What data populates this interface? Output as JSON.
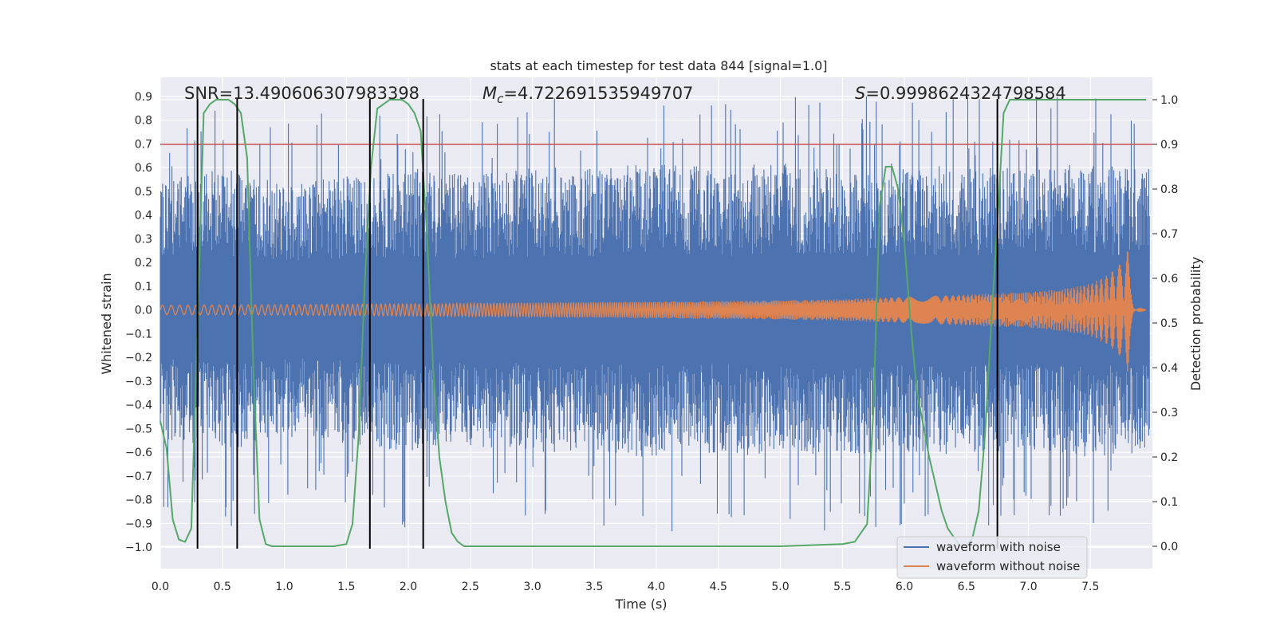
{
  "chart_data": {
    "type": "line",
    "title": "stats at each timestep for test data 844 [signal=1.0]",
    "xlabel": "Time (s)",
    "ylabel": "Whitened strain",
    "y2label": "Detection probability",
    "xlim": [
      0.0,
      8.0
    ],
    "ylim": [
      -1.09,
      0.98
    ],
    "y2lim": [
      -0.05,
      1.05
    ],
    "x_ticks": [
      0.0,
      0.5,
      1.0,
      1.5,
      2.0,
      2.5,
      3.0,
      3.5,
      4.0,
      4.5,
      5.0,
      5.5,
      6.0,
      6.5,
      7.0,
      7.5
    ],
    "x_tick_labels": [
      "0.0",
      "0.5",
      "1.0",
      "1.5",
      "2.0",
      "2.5",
      "3.0",
      "3.5",
      "4.0",
      "4.5",
      "5.0",
      "5.5",
      "6.0",
      "6.5",
      "7.0",
      "7.5"
    ],
    "y_ticks": [
      0.9,
      0.8,
      0.7,
      0.6,
      0.5,
      0.4,
      0.3,
      0.2,
      0.1,
      0.0,
      -0.1,
      -0.2,
      -0.3,
      -0.4,
      -0.5,
      -0.6,
      -0.7,
      -0.8,
      -0.9,
      -1.0
    ],
    "y_tick_labels": [
      "0.9",
      "0.8",
      "0.7",
      "0.6",
      "0.5",
      "0.4",
      "0.3",
      "0.2",
      "0.1",
      "0.0",
      "−0.1",
      "−0.2",
      "−0.3",
      "−0.4",
      "−0.5",
      "−0.6",
      "−0.7",
      "−0.8",
      "−0.9",
      "−1.0"
    ],
    "y2_ticks": [
      1.0,
      0.9,
      0.8,
      0.7,
      0.6,
      0.5,
      0.4,
      0.3,
      0.2,
      0.1,
      0.0
    ],
    "y2_tick_labels": [
      "1.0",
      "0.9",
      "0.8",
      "0.7",
      "0.6",
      "0.5",
      "0.4",
      "0.3",
      "0.2",
      "0.1",
      "0.0"
    ],
    "annotations": {
      "snr": "SNR=13.490606307983398",
      "mc_symbol": "M",
      "mc_sub": "c",
      "mc_value": "=4.722691535949707",
      "s_symbol": "S",
      "s_value": "=0.9998624324798584"
    },
    "threshold": {
      "y2": 0.9,
      "color": "#c44e52"
    },
    "vertical_lines_x": [
      0.3,
      0.62,
      1.69,
      2.12,
      6.75
    ],
    "series": [
      {
        "name": "waveform with noise",
        "color": "#4c72b0",
        "envelope_x": [
          0.0,
          0.5,
          1.0,
          1.5,
          2.0,
          2.5,
          3.0,
          3.5,
          4.0,
          4.5,
          5.0,
          5.5,
          6.0,
          6.5,
          7.0,
          7.5,
          7.95
        ],
        "typical_amplitude": [
          0.45,
          0.5,
          0.45,
          0.47,
          0.5,
          0.48,
          0.5,
          0.5,
          0.52,
          0.5,
          0.52,
          0.5,
          0.52,
          0.5,
          0.5,
          0.52,
          0.5
        ]
      },
      {
        "name": "waveform without noise",
        "color": "#dd8452",
        "envelope_x": [
          0.0,
          1.0,
          2.0,
          3.0,
          4.0,
          5.0,
          5.5,
          6.0,
          6.5,
          7.0,
          7.3,
          7.5,
          7.65,
          7.75,
          7.8,
          7.82,
          7.85,
          7.95
        ],
        "envelope_amp": [
          0.02,
          0.022,
          0.025,
          0.03,
          0.035,
          0.04,
          0.045,
          0.055,
          0.065,
          0.075,
          0.09,
          0.11,
          0.15,
          0.2,
          0.28,
          0.1,
          0.01,
          0.0
        ]
      },
      {
        "name": "detection probability",
        "color": "#55a868",
        "axis": "y2",
        "x": [
          0.0,
          0.05,
          0.1,
          0.15,
          0.2,
          0.25,
          0.3,
          0.35,
          0.4,
          0.45,
          0.5,
          0.55,
          0.6,
          0.65,
          0.7,
          0.75,
          0.8,
          0.85,
          0.9,
          1.0,
          1.2,
          1.4,
          1.5,
          1.55,
          1.6,
          1.65,
          1.7,
          1.75,
          1.8,
          1.85,
          1.9,
          1.95,
          2.0,
          2.05,
          2.1,
          2.15,
          2.2,
          2.25,
          2.3,
          2.35,
          2.4,
          2.45,
          2.6,
          3.0,
          4.0,
          5.0,
          5.5,
          5.6,
          5.7,
          5.75,
          5.8,
          5.85,
          5.9,
          5.95,
          6.0,
          6.05,
          6.1,
          6.2,
          6.3,
          6.35,
          6.4,
          6.45,
          6.5,
          6.55,
          6.6,
          6.65,
          6.7,
          6.75,
          6.8,
          6.85,
          6.9,
          7.0,
          7.5,
          7.95
        ],
        "y": [
          0.28,
          0.22,
          0.06,
          0.015,
          0.01,
          0.04,
          0.5,
          0.97,
          0.99,
          1.0,
          1.0,
          1.0,
          0.99,
          0.97,
          0.87,
          0.4,
          0.06,
          0.005,
          0.0,
          0.0,
          0.0,
          0.0,
          0.005,
          0.05,
          0.25,
          0.6,
          0.85,
          0.98,
          0.99,
          1.0,
          1.0,
          1.0,
          0.99,
          0.97,
          0.93,
          0.7,
          0.4,
          0.2,
          0.1,
          0.03,
          0.01,
          0.0,
          0.0,
          0.0,
          0.0,
          0.0,
          0.005,
          0.01,
          0.05,
          0.3,
          0.76,
          0.85,
          0.85,
          0.8,
          0.68,
          0.5,
          0.35,
          0.2,
          0.08,
          0.04,
          0.02,
          0.0,
          0.0,
          0.02,
          0.08,
          0.25,
          0.5,
          0.72,
          0.97,
          1.0,
          1.0,
          1.0,
          1.0,
          1.0
        ]
      }
    ],
    "legend": {
      "location": "lower-right",
      "entries": [
        "waveform with noise",
        "waveform without noise"
      ]
    },
    "grid": true,
    "background": "#eaeaf2"
  }
}
